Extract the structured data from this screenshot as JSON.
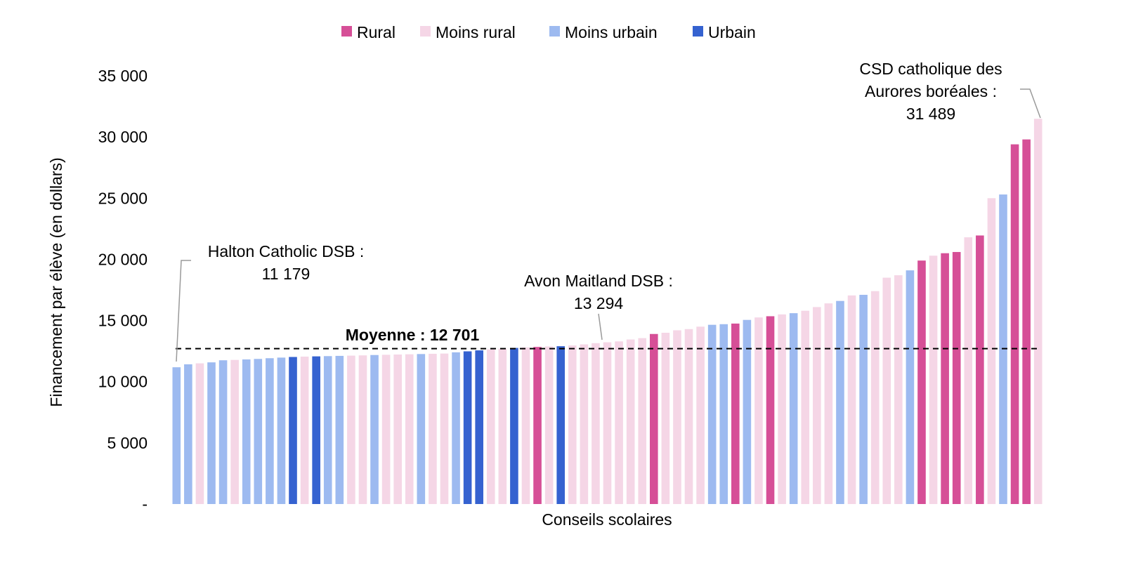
{
  "chart_data": {
    "type": "bar",
    "ylabel": "Financement par élève (en dollars)",
    "xlabel": "Conseils scolaires",
    "ylim": [
      0,
      35000
    ],
    "y_ticks": [
      {
        "value": 0,
        "label": "-"
      },
      {
        "value": 5000,
        "label": "5 000"
      },
      {
        "value": 10000,
        "label": "10 000"
      },
      {
        "value": 15000,
        "label": "15 000"
      },
      {
        "value": 20000,
        "label": "20 000"
      },
      {
        "value": 25000,
        "label": "25 000"
      },
      {
        "value": 30000,
        "label": "30 000"
      },
      {
        "value": 35000,
        "label": "35 000"
      }
    ],
    "legend": {
      "position": "top-center",
      "items": [
        {
          "key": "rural",
          "label": "Rural",
          "color": "#d64f97"
        },
        {
          "key": "moins_rural",
          "label": "Moins rural",
          "color": "#f5d6e6"
        },
        {
          "key": "moins_urbain",
          "label": "Moins urbain",
          "color": "#9dbaf0"
        },
        {
          "key": "urbain",
          "label": "Urbain",
          "color": "#3562d0"
        }
      ]
    },
    "mean": {
      "value": 12701,
      "label": "Moyenne : 12 701"
    },
    "bars": [
      {
        "value": 11179,
        "group": "moins_urbain"
      },
      {
        "value": 11420,
        "group": "moins_urbain"
      },
      {
        "value": 11500,
        "group": "moins_rural"
      },
      {
        "value": 11580,
        "group": "moins_urbain"
      },
      {
        "value": 11750,
        "group": "moins_urbain"
      },
      {
        "value": 11780,
        "group": "moins_rural"
      },
      {
        "value": 11820,
        "group": "moins_urbain"
      },
      {
        "value": 11860,
        "group": "moins_urbain"
      },
      {
        "value": 11920,
        "group": "moins_urbain"
      },
      {
        "value": 11970,
        "group": "moins_urbain"
      },
      {
        "value": 12020,
        "group": "urbain"
      },
      {
        "value": 12050,
        "group": "moins_rural"
      },
      {
        "value": 12070,
        "group": "urbain"
      },
      {
        "value": 12090,
        "group": "moins_urbain"
      },
      {
        "value": 12110,
        "group": "moins_urbain"
      },
      {
        "value": 12130,
        "group": "moins_rural"
      },
      {
        "value": 12150,
        "group": "moins_rural"
      },
      {
        "value": 12180,
        "group": "moins_urbain"
      },
      {
        "value": 12200,
        "group": "moins_rural"
      },
      {
        "value": 12220,
        "group": "moins_rural"
      },
      {
        "value": 12240,
        "group": "moins_rural"
      },
      {
        "value": 12260,
        "group": "moins_urbain"
      },
      {
        "value": 12280,
        "group": "moins_rural"
      },
      {
        "value": 12300,
        "group": "moins_rural"
      },
      {
        "value": 12400,
        "group": "moins_urbain"
      },
      {
        "value": 12480,
        "group": "urbain"
      },
      {
        "value": 12560,
        "group": "urbain"
      },
      {
        "value": 12640,
        "group": "moins_rural"
      },
      {
        "value": 12700,
        "group": "moins_rural"
      },
      {
        "value": 12760,
        "group": "urbain"
      },
      {
        "value": 12800,
        "group": "moins_rural"
      },
      {
        "value": 12840,
        "group": "rural"
      },
      {
        "value": 12880,
        "group": "moins_rural"
      },
      {
        "value": 12900,
        "group": "urbain"
      },
      {
        "value": 12960,
        "group": "moins_rural"
      },
      {
        "value": 13050,
        "group": "moins_rural"
      },
      {
        "value": 13150,
        "group": "moins_rural"
      },
      {
        "value": 13220,
        "group": "moins_rural"
      },
      {
        "value": 13294,
        "group": "moins_rural"
      },
      {
        "value": 13450,
        "group": "moins_rural"
      },
      {
        "value": 13560,
        "group": "moins_rural"
      },
      {
        "value": 13900,
        "group": "rural"
      },
      {
        "value": 14000,
        "group": "moins_rural"
      },
      {
        "value": 14200,
        "group": "moins_rural"
      },
      {
        "value": 14300,
        "group": "moins_rural"
      },
      {
        "value": 14500,
        "group": "moins_rural"
      },
      {
        "value": 14650,
        "group": "moins_urbain"
      },
      {
        "value": 14700,
        "group": "moins_urbain"
      },
      {
        "value": 14750,
        "group": "rural"
      },
      {
        "value": 15050,
        "group": "moins_urbain"
      },
      {
        "value": 15250,
        "group": "moins_rural"
      },
      {
        "value": 15350,
        "group": "rural"
      },
      {
        "value": 15500,
        "group": "moins_rural"
      },
      {
        "value": 15600,
        "group": "moins_urbain"
      },
      {
        "value": 15800,
        "group": "moins_rural"
      },
      {
        "value": 16100,
        "group": "moins_rural"
      },
      {
        "value": 16400,
        "group": "moins_rural"
      },
      {
        "value": 16600,
        "group": "moins_urbain"
      },
      {
        "value": 17050,
        "group": "moins_rural"
      },
      {
        "value": 17100,
        "group": "moins_urbain"
      },
      {
        "value": 17400,
        "group": "moins_rural"
      },
      {
        "value": 18500,
        "group": "moins_rural"
      },
      {
        "value": 18700,
        "group": "moins_rural"
      },
      {
        "value": 19100,
        "group": "moins_urbain"
      },
      {
        "value": 19900,
        "group": "rural"
      },
      {
        "value": 20300,
        "group": "moins_rural"
      },
      {
        "value": 20500,
        "group": "rural"
      },
      {
        "value": 20600,
        "group": "rural"
      },
      {
        "value": 21800,
        "group": "moins_rural"
      },
      {
        "value": 21950,
        "group": "rural"
      },
      {
        "value": 25000,
        "group": "moins_rural"
      },
      {
        "value": 25300,
        "group": "moins_urbain"
      },
      {
        "value": 29400,
        "group": "rural"
      },
      {
        "value": 29800,
        "group": "rural"
      },
      {
        "value": 31489,
        "group": "moins_rural"
      }
    ],
    "annotations": [
      {
        "bar_index": 0,
        "lines": [
          "Halton Catholic DSB :",
          "11 179"
        ]
      },
      {
        "bar_index": 38,
        "lines": [
          "Avon Maitland DSB :",
          "13 294"
        ]
      },
      {
        "bar_index": 74,
        "lines": [
          "CSD catholique des",
          "Aurores boréales :",
          "31 489"
        ]
      }
    ]
  }
}
